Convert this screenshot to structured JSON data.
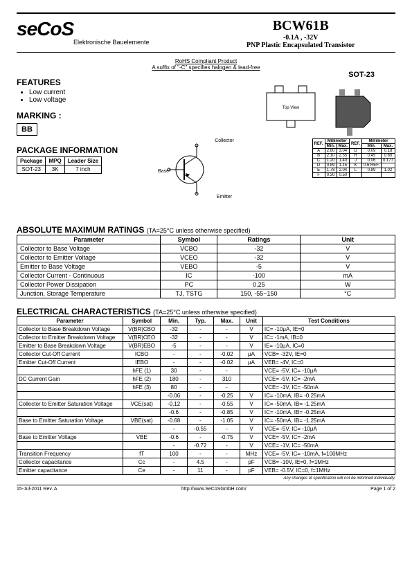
{
  "header": {
    "logo": "seCoS",
    "logo_sub": "Elektronische Bauelemente",
    "part": "BCW61B",
    "rating": "-0.1A , -32V",
    "desc": "PNP Plastic Encapsulated Transistor"
  },
  "rohs": {
    "line1": "RoHS Compliant Product",
    "line2": "A suffix of \"-C\" specifies halogen & lead-free"
  },
  "features": {
    "title": "FEATURES",
    "items": [
      "Low current",
      "Low voltage"
    ]
  },
  "marking": {
    "title": "MARKING :",
    "code": "BB"
  },
  "package_info": {
    "title": "PACKAGE INFORMATION",
    "headers": [
      "Package",
      "MPQ",
      "Leader Size"
    ],
    "row": [
      "SOT-23",
      "3K",
      "7 inch"
    ]
  },
  "sot23": "SOT-23",
  "transistor_labels": {
    "c": "Collector",
    "b": "Base",
    "e": "Emitter"
  },
  "dimensions": {
    "headers": [
      "REF.",
      "Min.",
      "Max.",
      "REF.",
      "Min.",
      "Max."
    ],
    "group": "Millimeter",
    "rows": [
      [
        "A",
        "2.80",
        "3.04",
        "G",
        "0.09",
        "0.18"
      ],
      [
        "B",
        "2.10",
        "2.55",
        "H",
        "0.45",
        "0.60"
      ],
      [
        "C",
        "1.20",
        "1.40",
        "J",
        "0.06",
        "0.177"
      ],
      [
        "D",
        "0.89",
        "1.15",
        "K",
        "0.6 REF.",
        ""
      ],
      [
        "E",
        "1.78",
        "2.04",
        "L",
        "0.89",
        "1.02"
      ],
      [
        "F",
        "0.30",
        "0.50",
        "",
        "",
        ""
      ]
    ]
  },
  "abs_max": {
    "title": "ABSOLUTE MAXIMUM RATINGS",
    "note": "(TA=25°C unless otherwise specified)",
    "headers": [
      "Parameter",
      "Symbol",
      "Ratings",
      "Unit"
    ],
    "rows": [
      [
        "Collector to Base Voltage",
        "VCBO",
        "-32",
        "V"
      ],
      [
        "Collector to Emitter Voltage",
        "VCEO",
        "-32",
        "V"
      ],
      [
        "Emitter to Base Voltage",
        "VEBO",
        "-5",
        "V"
      ],
      [
        "Collector Current - Continuous",
        "IC",
        "-100",
        "mA"
      ],
      [
        "Collector Power Dissipation",
        "PC",
        "0.25",
        "W"
      ],
      [
        "Junction, Storage Temperature",
        "TJ, TSTG",
        "150, -55~150",
        "°C"
      ]
    ]
  },
  "elec": {
    "title": "ELECTRICAL CHARACTERISTICS",
    "note": "(TA=25°C unless otherwise specified)",
    "headers": [
      "Parameter",
      "Symbol",
      "Min.",
      "Typ.",
      "Max.",
      "Unit",
      "Test Conditions"
    ],
    "rows": [
      [
        "Collector to Base Breakdown Voltage",
        "V(BR)CBO",
        "-32",
        "-",
        "-",
        "V",
        "IC= -10μA, IE=0"
      ],
      [
        "Collector to Emitter Breakdown Voltage",
        "V(BR)CEO",
        "-32",
        "-",
        "-",
        "V",
        "IC= -1mA, IB=0"
      ],
      [
        "Emitter to Base Breakdown Voltage",
        "V(BR)EBO",
        "-5",
        "-",
        "-",
        "V",
        "IE= -10μA, IC=0"
      ],
      [
        "Collector Cut-Off Current",
        "ICBO",
        "-",
        "-",
        "-0.02",
        "μA",
        "VCB= -32V, IE=0"
      ],
      [
        "Emitter Cut-Off Current",
        "IEBO",
        "-",
        "-",
        "-0.02",
        "μA",
        "VEB= -4V, IC=0"
      ],
      [
        "",
        "hFE (1)",
        "30",
        "-",
        "-",
        "",
        "VCE= -5V, IC= -10μA"
      ],
      [
        "DC Current Gain",
        "hFE (2)",
        "180",
        "-",
        "310",
        "",
        "VCE= -5V, IC= -2mA"
      ],
      [
        "",
        "hFE (3)",
        "80",
        "-",
        "-",
        "",
        "VCE= -1V, IC= -50mA"
      ],
      [
        "",
        "",
        "-0.06",
        "-",
        "-0.25",
        "V",
        "IC= -10mA, IB= -0.25mA"
      ],
      [
        "Collector to Emitter Saturation Voltage",
        "VCE(sat)",
        "-0.12",
        "-",
        "-0.55",
        "V",
        "IC= -50mA, IB= -1.25mA"
      ],
      [
        "",
        "",
        "-0.6",
        "-",
        "-0.85",
        "V",
        "IC= -10mA, IB= -0.25mA"
      ],
      [
        "Base to Emitter Saturation Voltage",
        "VBE(sat)",
        "-0.68",
        "-",
        "-1.05",
        "V",
        "IC= -50mA, IB= -1.25mA"
      ],
      [
        "",
        "",
        "-",
        "-0.55",
        "-",
        "V",
        "VCE= -5V, IC= -10μA"
      ],
      [
        "Base to Emitter Voltage",
        "VBE",
        "-0.6",
        "-",
        "-0.75",
        "V",
        "VCE= -5V, IC= -2mA"
      ],
      [
        "",
        "",
        "-",
        "-0.72",
        "-",
        "V",
        "VCE= -1V, IC= -50mA"
      ],
      [
        "Transition Frequency",
        "fT",
        "100",
        "-",
        "-",
        "MHz",
        "VCE= -5V, IC= -10mA, f=100MHz"
      ],
      [
        "Collector capacitance",
        "Cc",
        "-",
        "4.5",
        "-",
        "pF",
        "VCB= -10V, IE=0, f=1MHz"
      ],
      [
        "Emitter capacitance",
        "Ce",
        "-",
        "11",
        "-",
        "pF",
        "VEB= -0.5V, IC=0, f=1MHz"
      ]
    ]
  },
  "footer": {
    "note": "Any changes of specification will not be informed individually.",
    "date": "15-Jul-2011 Rev. A",
    "url": "http://www.SeCoSGmbH.com/",
    "page": "Page 1  of  2"
  }
}
